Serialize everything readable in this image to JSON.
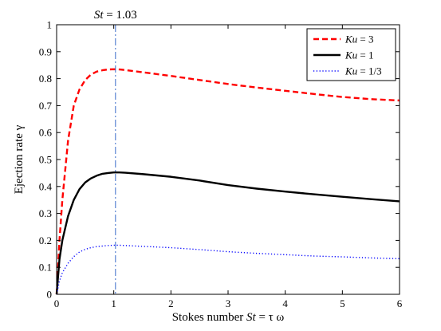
{
  "chart_data": {
    "type": "line",
    "xlabel_prefix": "Stokes number ",
    "xlabel_var": "St",
    "xlabel_suffix": " = τ ω",
    "ylabel": "Ejection rate γ",
    "xlim": [
      0,
      6
    ],
    "ylim": [
      0,
      1
    ],
    "x_ticks": [
      "0",
      "1",
      "2",
      "3",
      "4",
      "5",
      "6"
    ],
    "y_ticks": [
      "0",
      "0.1",
      "0.2",
      "0.3",
      "0.4",
      "0.5",
      "0.6",
      "0.7",
      "0.8",
      "0.9",
      "1"
    ],
    "grid": false,
    "legend_position": "top-right",
    "annotation": {
      "var": "St",
      "text": " = 1.03",
      "x": 1.03
    },
    "series": [
      {
        "legend_var": "Ku",
        "legend_value": " = 3",
        "color": "#ff0000",
        "style": "dashed",
        "points": [
          [
            0,
            0.0
          ],
          [
            0.05,
            0.2
          ],
          [
            0.1,
            0.35
          ],
          [
            0.2,
            0.57
          ],
          [
            0.3,
            0.7
          ],
          [
            0.4,
            0.76
          ],
          [
            0.5,
            0.795
          ],
          [
            0.6,
            0.815
          ],
          [
            0.7,
            0.826
          ],
          [
            0.8,
            0.831
          ],
          [
            0.9,
            0.834
          ],
          [
            1.0,
            0.835
          ],
          [
            1.1,
            0.834
          ],
          [
            1.2,
            0.832
          ],
          [
            1.5,
            0.824
          ],
          [
            2.0,
            0.81
          ],
          [
            2.5,
            0.795
          ],
          [
            3.0,
            0.78
          ],
          [
            3.5,
            0.767
          ],
          [
            4.0,
            0.755
          ],
          [
            4.5,
            0.743
          ],
          [
            5.0,
            0.732
          ],
          [
            5.5,
            0.724
          ],
          [
            6.0,
            0.719
          ]
        ]
      },
      {
        "legend_var": "Ku",
        "legend_value": " = 1",
        "color": "#000000",
        "style": "solid",
        "points": [
          [
            0,
            0.0
          ],
          [
            0.05,
            0.13
          ],
          [
            0.1,
            0.2
          ],
          [
            0.2,
            0.29
          ],
          [
            0.3,
            0.35
          ],
          [
            0.4,
            0.39
          ],
          [
            0.5,
            0.415
          ],
          [
            0.6,
            0.43
          ],
          [
            0.7,
            0.44
          ],
          [
            0.8,
            0.447
          ],
          [
            0.9,
            0.45
          ],
          [
            1.0,
            0.452
          ],
          [
            1.1,
            0.452
          ],
          [
            1.2,
            0.451
          ],
          [
            1.5,
            0.446
          ],
          [
            2.0,
            0.436
          ],
          [
            2.5,
            0.422
          ],
          [
            3.0,
            0.405
          ],
          [
            3.5,
            0.392
          ],
          [
            4.0,
            0.381
          ],
          [
            4.5,
            0.371
          ],
          [
            5.0,
            0.362
          ],
          [
            5.5,
            0.353
          ],
          [
            6.0,
            0.345
          ]
        ]
      },
      {
        "legend_var": "Ku",
        "legend_value": " = 1/3",
        "color": "#0000ff",
        "style": "dotted",
        "points": [
          [
            0,
            0.0
          ],
          [
            0.05,
            0.05
          ],
          [
            0.1,
            0.08
          ],
          [
            0.2,
            0.115
          ],
          [
            0.3,
            0.14
          ],
          [
            0.4,
            0.157
          ],
          [
            0.5,
            0.167
          ],
          [
            0.6,
            0.173
          ],
          [
            0.7,
            0.177
          ],
          [
            0.8,
            0.179
          ],
          [
            0.9,
            0.181
          ],
          [
            1.0,
            0.182
          ],
          [
            1.1,
            0.182
          ],
          [
            1.2,
            0.181
          ],
          [
            1.5,
            0.178
          ],
          [
            2.0,
            0.173
          ],
          [
            2.5,
            0.166
          ],
          [
            3.0,
            0.158
          ],
          [
            3.5,
            0.152
          ],
          [
            4.0,
            0.147
          ],
          [
            4.5,
            0.142
          ],
          [
            5.0,
            0.139
          ],
          [
            5.5,
            0.135
          ],
          [
            6.0,
            0.132
          ]
        ]
      }
    ]
  }
}
